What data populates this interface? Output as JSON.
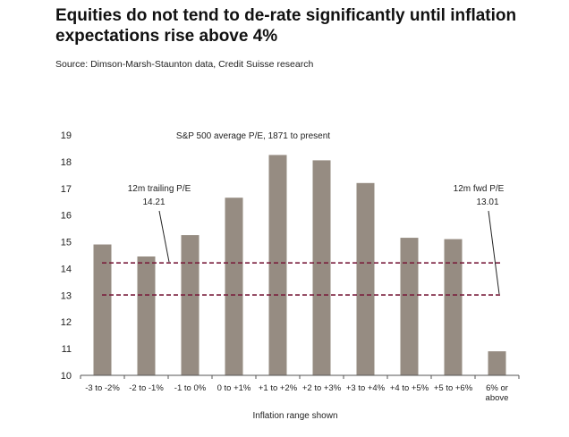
{
  "title": "Equities do not tend to de-rate significantly until inflation expectations rise above 4%",
  "source": "Source: Dimson-Marsh-Staunton data, Credit Suisse research",
  "colors": {
    "bar": "#968c82",
    "reference_line": "#7a1f3d",
    "axis": "#555555"
  },
  "chart_data": {
    "type": "bar",
    "subtitle": "S&P 500 average P/E, 1871 to present",
    "xlabel": "Inflation range shown",
    "ylabel": "",
    "ylim": [
      10,
      19
    ],
    "yticks": [
      10,
      11,
      12,
      13,
      14,
      15,
      16,
      17,
      18,
      19
    ],
    "categories": [
      [
        "-3 to -2%"
      ],
      [
        "-2 to -1%"
      ],
      [
        "-1 to 0%"
      ],
      [
        "0 to +1%"
      ],
      [
        "+1 to +2%"
      ],
      [
        "+2 to +3%"
      ],
      [
        "+3 to +4%"
      ],
      [
        "+4 to +5%"
      ],
      [
        "+5 to +6%"
      ],
      [
        "6% or",
        "above"
      ]
    ],
    "values": [
      14.9,
      14.45,
      15.25,
      16.65,
      18.25,
      18.05,
      17.2,
      15.15,
      15.1,
      10.9
    ],
    "reference_lines": [
      {
        "label": "12m trailing P/E",
        "value_label": "14.21",
        "value": 14.21
      },
      {
        "label": "12m fwd P/E",
        "value_label": "13.01",
        "value": 13.01
      }
    ],
    "grid": false,
    "legend": "none"
  }
}
